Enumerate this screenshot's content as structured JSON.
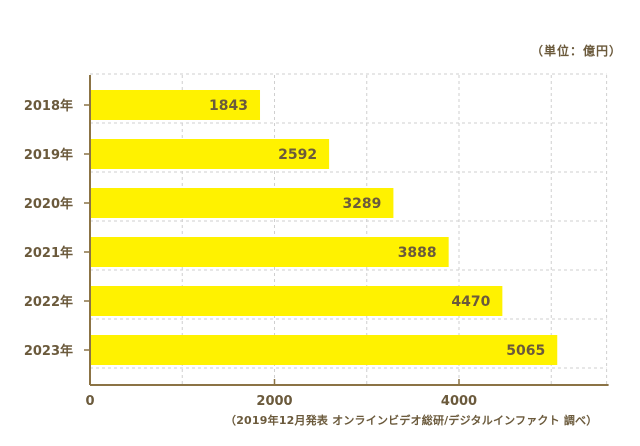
{
  "unit_label": "（単位：億円）",
  "source_note": "（2019年12月発表 オンラインビデオ総研/デジタルインファクト 調べ）",
  "colors": {
    "bar": "#fff200",
    "axis": "#8b7345",
    "grid": "#cfcfcf",
    "text": "#6b5a3c"
  },
  "chart_data": {
    "type": "bar",
    "orientation": "horizontal",
    "categories": [
      "2018年",
      "2019年",
      "2020年",
      "2021年",
      "2022年",
      "2023年"
    ],
    "values": [
      1843,
      2592,
      3289,
      3888,
      4470,
      5065
    ],
    "xlim": [
      0,
      5600
    ],
    "x_ticks": [
      0,
      2000,
      4000
    ],
    "grid": true,
    "title": "",
    "xlabel": "",
    "ylabel": ""
  }
}
